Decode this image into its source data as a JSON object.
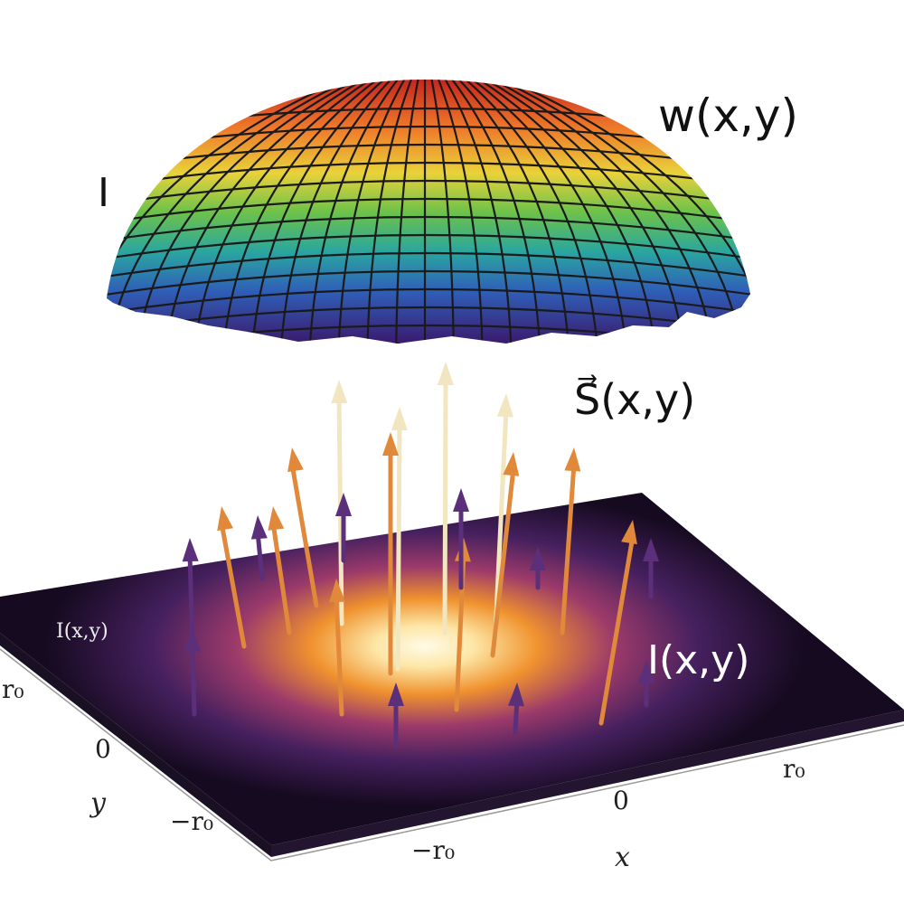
{
  "surface": {
    "label": "w(x,y)",
    "side_label": "I"
  },
  "vectors": {
    "label": "S⃗(x,y)"
  },
  "plane": {
    "label": "I(x,y)",
    "corner_label": "I(x,y)"
  },
  "x_axis": {
    "title": "x",
    "ticks": [
      "−r₀",
      "0",
      "r₀"
    ]
  },
  "y_axis": {
    "title": "y",
    "ticks": [
      "r₀",
      "0",
      "−r₀"
    ]
  }
}
